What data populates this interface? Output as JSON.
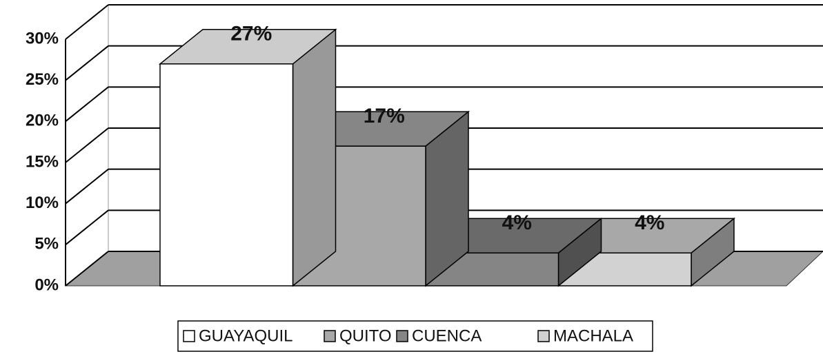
{
  "chart_data": {
    "type": "bar3d",
    "series": [
      {
        "name": "GUAYAQUIL",
        "color": "#ffffff",
        "values": [
          27
        ],
        "value_labels": [
          "27%"
        ]
      },
      {
        "name": "QUITO",
        "color": "#a8a8a8",
        "values": [
          17
        ],
        "value_labels": [
          "17%"
        ]
      },
      {
        "name": "CUENCA",
        "color": "#858585",
        "values": [
          4
        ],
        "value_labels": [
          "4%"
        ]
      },
      {
        "name": "MACHALA",
        "color": "#d2d2d2",
        "values": [
          4
        ],
        "value_labels": [
          "4%"
        ]
      }
    ],
    "ylim": [
      0,
      30
    ],
    "yticks": [
      {
        "value": 0,
        "label": "0%"
      },
      {
        "value": 5,
        "label": "5%"
      },
      {
        "value": 10,
        "label": "10%"
      },
      {
        "value": 15,
        "label": "15%"
      },
      {
        "value": 20,
        "label": "20%"
      },
      {
        "value": 25,
        "label": "25%"
      },
      {
        "value": 30,
        "label": "30%"
      }
    ],
    "grid": true
  }
}
